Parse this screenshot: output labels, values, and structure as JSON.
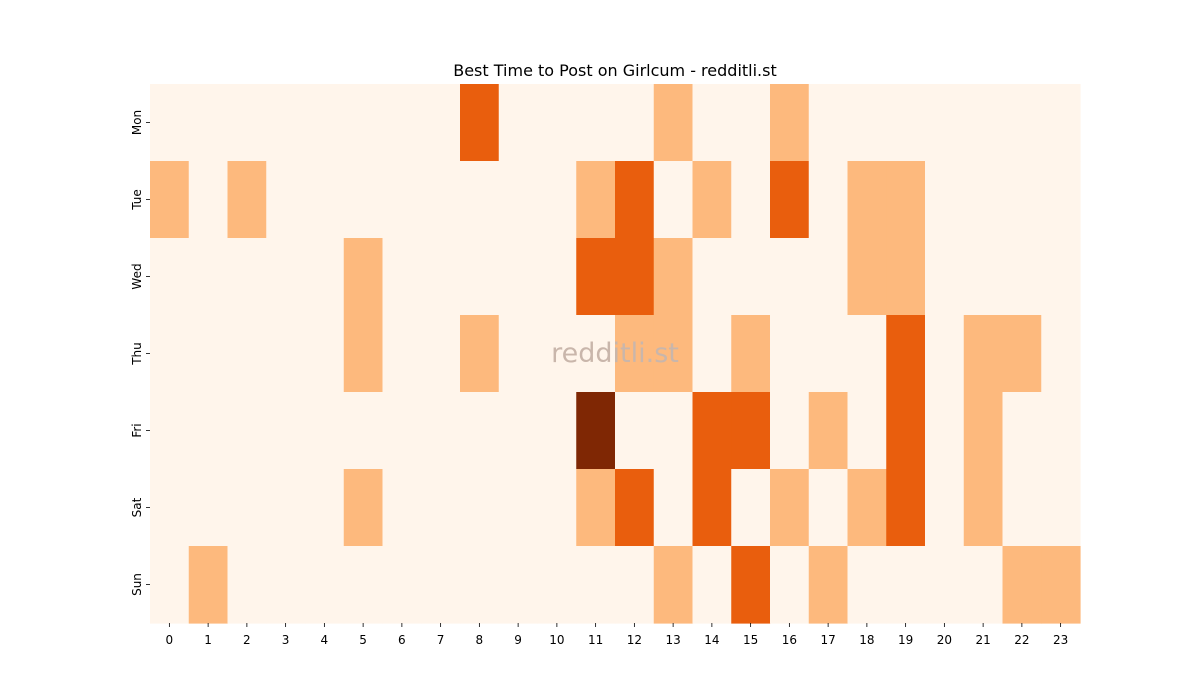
{
  "chart_data": {
    "type": "heatmap",
    "title": "Best Time to Post on Girlcum - redditli.st",
    "watermark": "redditli.st",
    "xlabel": "",
    "ylabel": "",
    "x_categories": [
      "0",
      "1",
      "2",
      "3",
      "4",
      "5",
      "6",
      "7",
      "8",
      "9",
      "10",
      "11",
      "12",
      "13",
      "14",
      "15",
      "16",
      "17",
      "18",
      "19",
      "20",
      "21",
      "22",
      "23"
    ],
    "y_categories": [
      "Mon",
      "Tue",
      "Wed",
      "Thu",
      "Fri",
      "Sat",
      "Sun"
    ],
    "values": [
      [
        0,
        0,
        0,
        0,
        0,
        0,
        0,
        0,
        2,
        0,
        0,
        0,
        0,
        1,
        0,
        0,
        1,
        0,
        0,
        0,
        0,
        0,
        0,
        0
      ],
      [
        1,
        0,
        1,
        0,
        0,
        0,
        0,
        0,
        0,
        0,
        0,
        1,
        2,
        0,
        1,
        0,
        2,
        0,
        1,
        1,
        0,
        0,
        0,
        0
      ],
      [
        0,
        0,
        0,
        0,
        0,
        1,
        0,
        0,
        0,
        0,
        0,
        2,
        2,
        1,
        0,
        0,
        0,
        0,
        1,
        1,
        0,
        0,
        0,
        0
      ],
      [
        0,
        0,
        0,
        0,
        0,
        1,
        0,
        0,
        1,
        0,
        0,
        0,
        1,
        1,
        0,
        1,
        0,
        0,
        0,
        2,
        0,
        1,
        1,
        0
      ],
      [
        0,
        0,
        0,
        0,
        0,
        0,
        0,
        0,
        0,
        0,
        0,
        3,
        0,
        0,
        2,
        2,
        0,
        1,
        0,
        2,
        0,
        1,
        0,
        0
      ],
      [
        0,
        0,
        0,
        0,
        0,
        1,
        0,
        0,
        0,
        0,
        0,
        1,
        2,
        0,
        2,
        0,
        1,
        0,
        1,
        2,
        0,
        1,
        0,
        0
      ],
      [
        0,
        1,
        0,
        0,
        0,
        0,
        0,
        0,
        0,
        0,
        0,
        0,
        0,
        1,
        0,
        2,
        0,
        1,
        0,
        0,
        0,
        0,
        1,
        1
      ]
    ],
    "value_range": [
      0,
      3
    ],
    "colors": [
      "#fff5eb",
      "#fdb97d",
      "#e95e0d",
      "#7f2704"
    ],
    "grid": false,
    "colorbar": false
  }
}
